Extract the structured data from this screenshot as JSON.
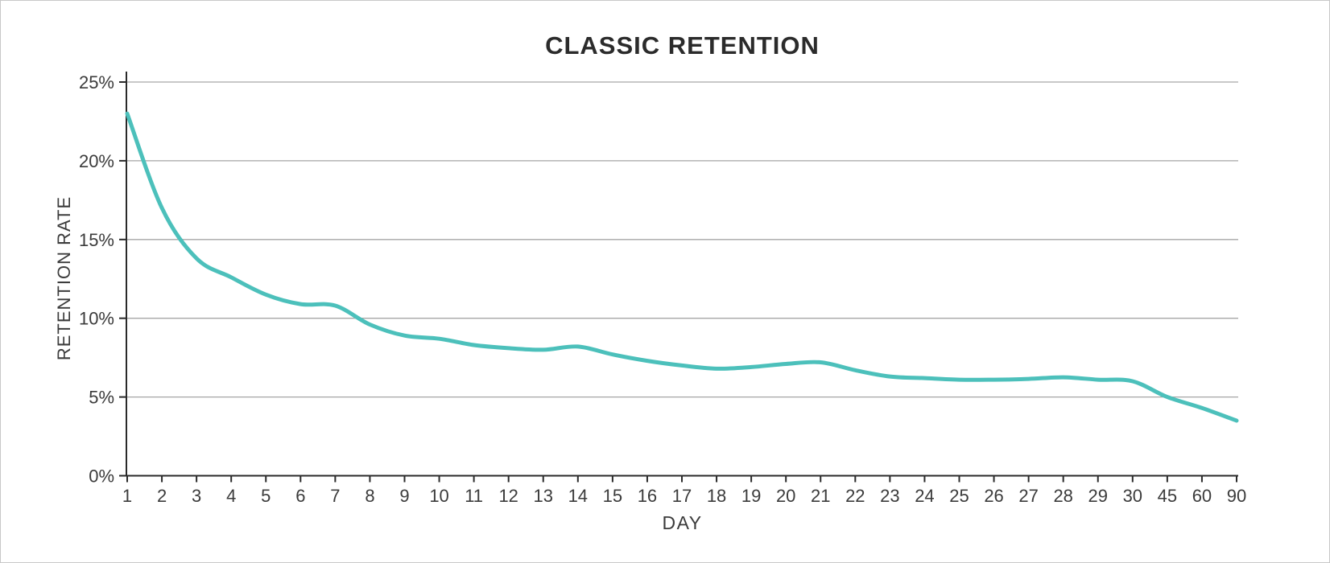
{
  "page": {
    "background": "#ffffff",
    "frame_border": "#c8c8c8"
  },
  "chart_data": {
    "type": "line",
    "title": "CLASSIC RETENTION",
    "xlabel": "DAY",
    "ylabel": "RETENTION RATE",
    "categories": [
      "1",
      "2",
      "3",
      "4",
      "5",
      "6",
      "7",
      "8",
      "9",
      "10",
      "11",
      "12",
      "13",
      "14",
      "15",
      "16",
      "17",
      "18",
      "19",
      "20",
      "21",
      "22",
      "23",
      "24",
      "25",
      "26",
      "27",
      "28",
      "29",
      "30",
      "45",
      "60",
      "90"
    ],
    "values": [
      23,
      17,
      13.8,
      12.6,
      11.5,
      10.9,
      10.8,
      9.6,
      8.9,
      8.7,
      8.3,
      8.1,
      8.0,
      8.2,
      7.7,
      7.3,
      7.0,
      6.8,
      6.9,
      7.1,
      7.2,
      6.7,
      6.3,
      6.2,
      6.1,
      6.1,
      6.15,
      6.25,
      6.1,
      6.0,
      5.0,
      4.3,
      3.5
    ],
    "unit": "%",
    "ylim": [
      0,
      25
    ],
    "yticks": [
      {
        "value": 0,
        "label": "0%"
      },
      {
        "value": 5,
        "label": "5%"
      },
      {
        "value": 10,
        "label": "10%"
      },
      {
        "value": 15,
        "label": "15%"
      },
      {
        "value": 20,
        "label": "20%"
      },
      {
        "value": 25,
        "label": "25%"
      }
    ],
    "grid": "horizontal",
    "legend": "none",
    "colors": {
      "line": "#4cc0bb",
      "axis": "#2a2a2a",
      "grid": "#a6a6a6",
      "text": "#3b3b3b",
      "title": "#2b2b2b"
    }
  }
}
